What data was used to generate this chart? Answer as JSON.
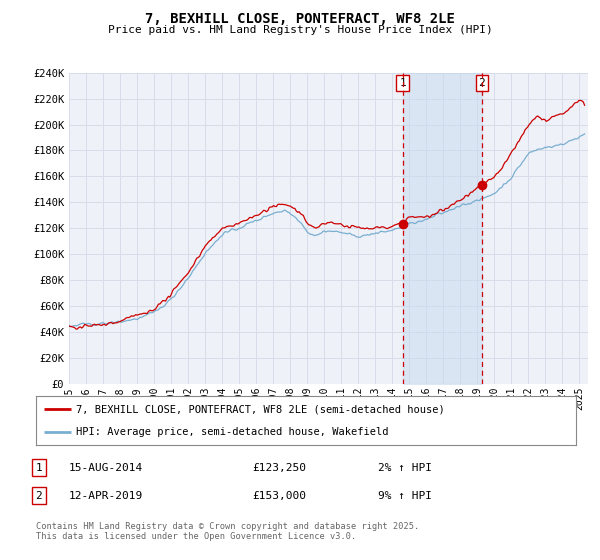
{
  "title": "7, BEXHILL CLOSE, PONTEFRACT, WF8 2LE",
  "subtitle": "Price paid vs. HM Land Registry's House Price Index (HPI)",
  "legend_label_red": "7, BEXHILL CLOSE, PONTEFRACT, WF8 2LE (semi-detached house)",
  "legend_label_blue": "HPI: Average price, semi-detached house, Wakefield",
  "ylim": [
    0,
    240000
  ],
  "background_color": "#ffffff",
  "plot_bg_color": "#eef2f8",
  "grid_color": "#d8dce8",
  "red_color": "#cc0000",
  "blue_color": "#7aaed0",
  "fill_color": "#c8daf0",
  "vline1_x": 2014.62,
  "vline2_x": 2019.27,
  "vline_color": "#cc0000",
  "dot1_x": 2014.62,
  "dot1_y": 123250,
  "dot2_x": 2019.27,
  "dot2_y": 153000,
  "annotation1_date": "15-AUG-2014",
  "annotation1_price": "£123,250",
  "annotation1_hpi": "2% ↑ HPI",
  "annotation2_date": "12-APR-2019",
  "annotation2_price": "£153,000",
  "annotation2_hpi": "9% ↑ HPI",
  "footer": "Contains HM Land Registry data © Crown copyright and database right 2025.\nThis data is licensed under the Open Government Licence v3.0.",
  "xmin": 1995,
  "xmax": 2025.5
}
